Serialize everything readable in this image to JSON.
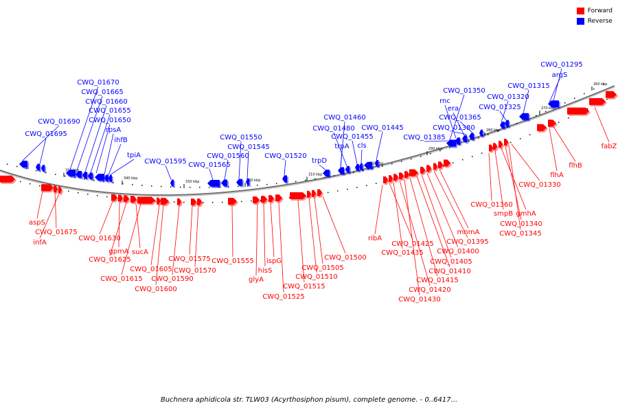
{
  "legend": [
    {
      "label": "Forward",
      "color": "#ff0000"
    },
    {
      "label": "Reverse",
      "color": "#0000ff"
    }
  ],
  "caption": "Buchnera aphidicola str. TLW03 (Acyrthosiphon pisum), complete genome. - 0..6417...",
  "colors": {
    "forward": "#ff0000",
    "reverse": "#0000ff",
    "backbone": "#707070"
  },
  "ticks": [
    "350 kbp",
    "340 kbp",
    "330 kbp",
    "320 kbp",
    "310 kbp",
    "300 kbp",
    "290 kbp",
    "280 kbp",
    "270 kbp",
    "260 kbp"
  ],
  "forward_labels": [
    "aspS",
    "CWQ_01675",
    "infA",
    "CWQ_01630",
    "gpmA",
    "CWQ_01625",
    "sucA",
    "CWQ_01615",
    "CWQ_01605",
    "CWQ_01600",
    "CWQ_01590",
    "CWQ_01575",
    "CWQ_01570",
    "CWQ_01555",
    "glyA",
    "hisS",
    "ispG",
    "CWQ_01525",
    "CWQ_01515",
    "CWQ_01510",
    "CWQ_01505",
    "CWQ_01500",
    "ribA",
    "CWQ_01425",
    "CWQ_01435",
    "CWQ_01420",
    "CWQ_01430",
    "CWQ_01415",
    "CWQ_01410",
    "CWQ_01405",
    "CWQ_01400",
    "CWQ_01395",
    "mnmA",
    "CWQ_01360",
    "smpB",
    "gmhA",
    "CWQ_01340",
    "CWQ_01345",
    "CWQ_01330",
    "flhA",
    "flhB",
    "fabZ"
  ],
  "reverse_labels": [
    "CWQ_01670",
    "CWQ_01665",
    "CWQ_01660",
    "CWQ_01655",
    "CWQ_01650",
    "rpsA",
    "ihfB",
    "tpiA",
    "CWQ_01690",
    "CWQ_01695",
    "CWQ_01595",
    "CWQ_01565",
    "CWQ_01560",
    "CWQ_01550",
    "CWQ_01545",
    "CWQ_01520",
    "trpD",
    "CWQ_01460",
    "CWQ_01480",
    "CWQ_01455",
    "trpA",
    "cls",
    "CWQ_01445",
    "CWQ_01350",
    "rnc",
    "era",
    "CWQ_01365",
    "CWQ_01380",
    "CWQ_01385",
    "CWQ_01320",
    "CWQ_01325",
    "CWQ_01315",
    "CWQ_01295",
    "argS"
  ]
}
